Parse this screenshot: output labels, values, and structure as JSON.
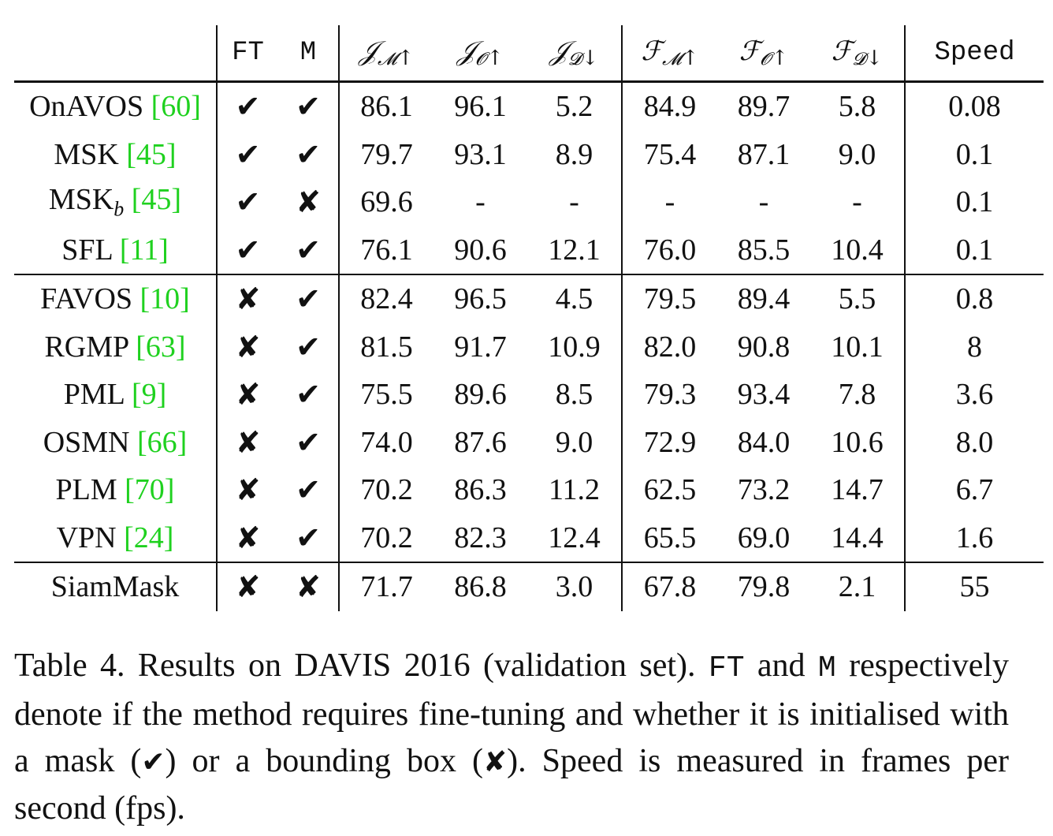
{
  "header": {
    "ft": "FT",
    "m": "M",
    "speed": "Speed",
    "metrics": [
      {
        "letter": "𝒥",
        "sub": "𝓜",
        "arrow": "↑"
      },
      {
        "letter": "𝒥",
        "sub": "𝓞",
        "arrow": "↑"
      },
      {
        "letter": "𝒥",
        "sub": "𝓓",
        "arrow": "↓"
      },
      {
        "letter": "ℱ",
        "sub": "𝓜",
        "arrow": "↑"
      },
      {
        "letter": "ℱ",
        "sub": "𝓞",
        "arrow": "↑"
      },
      {
        "letter": "ℱ",
        "sub": "𝓓",
        "arrow": "↓"
      }
    ]
  },
  "marks": {
    "yes": "✔",
    "no": "✘"
  },
  "rows": [
    {
      "name": "OnAVOS",
      "sub": "",
      "cite": "[60]",
      "ft": "✔",
      "m": "✔",
      "jm": "86.1",
      "jo": "96.1",
      "jd": "5.2",
      "fm": "84.9",
      "fo": "89.7",
      "fd": "5.8",
      "speed": "0.08"
    },
    {
      "name": "MSK",
      "sub": "",
      "cite": "[45]",
      "ft": "✔",
      "m": "✔",
      "jm": "79.7",
      "jo": "93.1",
      "jd": "8.9",
      "fm": "75.4",
      "fo": "87.1",
      "fd": "9.0",
      "speed": "0.1"
    },
    {
      "name": "MSK",
      "sub": "b",
      "cite": "[45]",
      "ft": "✔",
      "m": "✘",
      "jm": "69.6",
      "jo": "-",
      "jd": "-",
      "fm": "-",
      "fo": "-",
      "fd": "-",
      "speed": "0.1"
    },
    {
      "name": "SFL",
      "sub": "",
      "cite": "[11]",
      "ft": "✔",
      "m": "✔",
      "jm": "76.1",
      "jo": "90.6",
      "jd": "12.1",
      "fm": "76.0",
      "fo": "85.5",
      "fd": "10.4",
      "speed": "0.1"
    },
    {
      "name": "FAVOS",
      "sub": "",
      "cite": "[10]",
      "ft": "✘",
      "m": "✔",
      "jm": "82.4",
      "jo": "96.5",
      "jd": "4.5",
      "fm": "79.5",
      "fo": "89.4",
      "fd": "5.5",
      "speed": "0.8"
    },
    {
      "name": "RGMP",
      "sub": "",
      "cite": "[63]",
      "ft": "✘",
      "m": "✔",
      "jm": "81.5",
      "jo": "91.7",
      "jd": "10.9",
      "fm": "82.0",
      "fo": "90.8",
      "fd": "10.1",
      "speed": "8"
    },
    {
      "name": "PML",
      "sub": "",
      "cite": "[9]",
      "ft": "✘",
      "m": "✔",
      "jm": "75.5",
      "jo": "89.6",
      "jd": "8.5",
      "fm": "79.3",
      "fo": "93.4",
      "fd": "7.8",
      "speed": "3.6"
    },
    {
      "name": "OSMN",
      "sub": "",
      "cite": "[66]",
      "ft": "✘",
      "m": "✔",
      "jm": "74.0",
      "jo": "87.6",
      "jd": "9.0",
      "fm": "72.9",
      "fo": "84.0",
      "fd": "10.6",
      "speed": "8.0"
    },
    {
      "name": "PLM",
      "sub": "",
      "cite": "[70]",
      "ft": "✘",
      "m": "✔",
      "jm": "70.2",
      "jo": "86.3",
      "jd": "11.2",
      "fm": "62.5",
      "fo": "73.2",
      "fd": "14.7",
      "speed": "6.7"
    },
    {
      "name": "VPN",
      "sub": "",
      "cite": "[24]",
      "ft": "✘",
      "m": "✔",
      "jm": "70.2",
      "jo": "82.3",
      "jd": "12.4",
      "fm": "65.5",
      "fo": "69.0",
      "fd": "14.4",
      "speed": "1.6"
    },
    {
      "name": "SiamMask",
      "sub": "",
      "cite": "",
      "ft": "✘",
      "m": "✘",
      "jm": "71.7",
      "jo": "86.8",
      "jd": "3.0",
      "fm": "67.8",
      "fo": "79.8",
      "fd": "2.1",
      "speed": "55"
    }
  ],
  "caption": {
    "part1": "Table 4. Results on DAVIS 2016 (validation set). ",
    "ft": "FT",
    "and": " and ",
    "m": "M",
    "part2": " respectively denote if the method requires fine-tuning and whether it is initialised with a mask (",
    "yes": "✔",
    "part3": ") or a bounding box (",
    "no": "✘",
    "part4": "). Speed is measured in frames per second (fps)."
  }
}
